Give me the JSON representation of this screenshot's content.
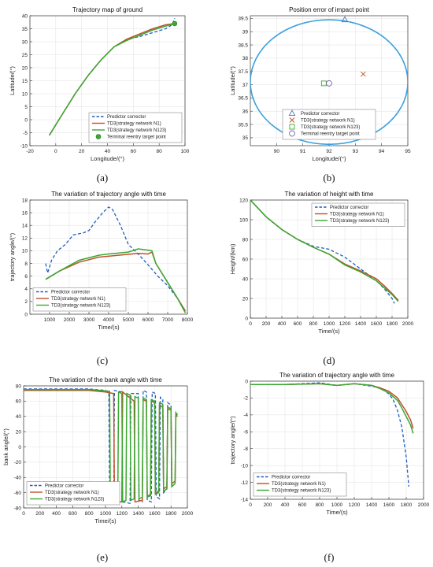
{
  "chart_data": [
    {
      "id": "a",
      "type": "line",
      "caption": "(a)",
      "title": "Trajectory map of ground",
      "xlabel": "Longitude/(°)",
      "ylabel": "Latitude/(°)",
      "xlim": [
        -20,
        100
      ],
      "ylim": [
        -10,
        40
      ],
      "xticks": [
        -20,
        0,
        20,
        40,
        60,
        80,
        100
      ],
      "yticks": [
        -10,
        -5,
        0,
        5,
        10,
        15,
        20,
        25,
        30,
        35,
        40
      ],
      "legend_position": "bottom-right",
      "legend": [
        "Predictor corrector",
        "TD3(strategy network N1)",
        "TD3(strategy network N123)",
        "Terminal reentry target point"
      ],
      "series": [
        {
          "name": "Predictor corrector",
          "style": "dashed",
          "color": "#1f5fbf",
          "x": [
            -5,
            5,
            15,
            25,
            35,
            45,
            55,
            65,
            75,
            85,
            90,
            92
          ],
          "y": [
            -6,
            2,
            10,
            17,
            23,
            28,
            31,
            32,
            33.5,
            35,
            36.5,
            39
          ]
        },
        {
          "name": "TD3(strategy network N1)",
          "style": "solid",
          "color": "#c0502a",
          "x": [
            -5,
            5,
            15,
            25,
            35,
            45,
            55,
            65,
            75,
            85,
            92
          ],
          "y": [
            -6,
            2,
            10,
            17,
            23,
            28,
            31,
            33,
            35,
            36.5,
            37
          ]
        },
        {
          "name": "TD3(strategy network N123)",
          "style": "solid",
          "color": "#3aa832",
          "x": [
            -5,
            5,
            15,
            25,
            35,
            45,
            55,
            65,
            75,
            85,
            92
          ],
          "y": [
            -6,
            2,
            10,
            17,
            23,
            28,
            30.5,
            32.5,
            34.5,
            36,
            37
          ]
        }
      ],
      "points": [
        {
          "name": "Terminal reentry target point",
          "x": 92,
          "y": 37,
          "color": "#3aa832",
          "marker": "filled-circle"
        }
      ]
    },
    {
      "id": "b",
      "type": "scatter",
      "caption": "(b)",
      "title": "Position error of impact point",
      "xlabel": "Longitude/(°)",
      "ylabel": "Latitude/(°)",
      "xlim": [
        89,
        95
      ],
      "ylim": [
        34.7,
        39.6
      ],
      "xticks": [
        90,
        91,
        92,
        93,
        94,
        95
      ],
      "yticks": [
        35,
        35.5,
        36,
        36.5,
        37,
        37.5,
        38,
        38.5,
        39,
        39.5
      ],
      "legend_position": "bottom",
      "legend": [
        "Predictor corrector",
        "TD3(strategy network N1)",
        "TD3(strategy network N123)",
        "Terminal reentry target point"
      ],
      "circle": {
        "cx": 92,
        "cy": 37.1,
        "rx": 3.0,
        "ry": 2.35,
        "color": "#3aa0e0"
      },
      "points": [
        {
          "name": "Predictor corrector",
          "x": 92.6,
          "y": 39.45,
          "marker": "triangle",
          "color": "#4a78c0"
        },
        {
          "name": "TD3(strategy network N1)",
          "x": 93.3,
          "y": 37.4,
          "marker": "x",
          "color": "#c0502a"
        },
        {
          "name": "TD3(strategy network N123)",
          "x": 91.8,
          "y": 37.05,
          "marker": "square",
          "color": "#3aa832"
        },
        {
          "name": "Terminal reentry target point",
          "x": 92,
          "y": 37.05,
          "marker": "circle",
          "color": "#7a6aa8"
        }
      ]
    },
    {
      "id": "c",
      "type": "line",
      "caption": "(c)",
      "title": "The variation of trajectory angle with time",
      "xlabel": "Time/(s)",
      "ylabel": "trajectory angle/(°)",
      "xlim": [
        0,
        8000
      ],
      "ylim": [
        0,
        18
      ],
      "xticks": [
        1000,
        2000,
        3000,
        4000,
        5000,
        6000,
        7000,
        8000
      ],
      "yticks": [
        0,
        2,
        4,
        6,
        8,
        10,
        12,
        14,
        16,
        18
      ],
      "legend_position": "bottom-left",
      "legend": [
        "Predictor corrector",
        "TD3(strategy network N1)",
        "TD3(strategy network N123)"
      ],
      "series": [
        {
          "name": "Predictor corrector",
          "style": "dashed",
          "color": "#1f5fbf",
          "x": [
            800,
            900,
            1100,
            1400,
            1800,
            2200,
            2700,
            3000,
            3300,
            3700,
            4000,
            4200,
            4600,
            5000,
            5500,
            6000,
            6500,
            7000,
            7500,
            7900
          ],
          "y": [
            8,
            6.5,
            8.5,
            10,
            11,
            12.5,
            12.8,
            13.2,
            14.5,
            16,
            16.9,
            16.5,
            14,
            11,
            9.5,
            7.8,
            6,
            4.5,
            2.5,
            0.5
          ]
        },
        {
          "name": "TD3(strategy network N1)",
          "style": "solid",
          "color": "#c0502a",
          "x": [
            800,
            1500,
            2500,
            3500,
            4500,
            5500,
            6000,
            6200,
            6400,
            7000,
            7500,
            7900
          ],
          "y": [
            5.5,
            6.8,
            8.2,
            9,
            9.3,
            9.6,
            9.5,
            9.8,
            8,
            5,
            2.5,
            0.5
          ]
        },
        {
          "name": "TD3(strategy network N123)",
          "style": "solid",
          "color": "#3aa832",
          "x": [
            800,
            1500,
            2500,
            3500,
            4000,
            5000,
            5500,
            6000,
            6200,
            6400,
            7000,
            7500,
            7900
          ],
          "y": [
            5.5,
            6.8,
            8.5,
            9.3,
            9.5,
            9.8,
            10.3,
            10.1,
            10,
            8,
            5,
            2.5,
            0.2
          ]
        }
      ]
    },
    {
      "id": "d",
      "type": "line",
      "caption": "(d)",
      "title": "The variation of height with time",
      "xlabel": "Time/(s)",
      "ylabel": "Height/(km)",
      "xlim": [
        0,
        2000
      ],
      "ylim": [
        0,
        120
      ],
      "xticks": [
        0,
        200,
        400,
        600,
        800,
        1000,
        1200,
        1400,
        1600,
        1800,
        2000
      ],
      "yticks": [
        0,
        20,
        40,
        60,
        80,
        100,
        120
      ],
      "legend_position": "top-right",
      "legend": [
        "Predictor corrector",
        "TD3(strategy network N1)",
        "TD3(strategy network N123)"
      ],
      "series": [
        {
          "name": "Predictor corrector",
          "style": "dashed",
          "color": "#1f5fbf",
          "x": [
            0,
            200,
            400,
            600,
            800,
            1000,
            1200,
            1400,
            1600,
            1700,
            1800,
            1830
          ],
          "y": [
            120,
            103,
            90,
            80,
            73,
            70,
            62,
            50,
            38,
            30,
            20,
            15
          ]
        },
        {
          "name": "TD3(strategy network N1)",
          "style": "solid",
          "color": "#c0502a",
          "x": [
            0,
            200,
            400,
            600,
            800,
            1000,
            1200,
            1400,
            1600,
            1700,
            1800,
            1880
          ],
          "y": [
            120,
            103,
            90,
            80,
            72,
            65,
            55,
            48,
            40,
            33,
            25,
            18
          ]
        },
        {
          "name": "TD3(strategy network N123)",
          "style": "solid",
          "color": "#3aa832",
          "x": [
            0,
            200,
            400,
            600,
            800,
            1000,
            1200,
            1400,
            1600,
            1700,
            1800,
            1880
          ],
          "y": [
            120,
            103,
            90,
            80,
            72,
            65,
            54,
            47,
            38,
            31,
            24,
            17
          ]
        }
      ]
    },
    {
      "id": "e",
      "type": "line",
      "caption": "(e)",
      "title": "The variation of the bank angle with time",
      "xlabel": "Time/(s)",
      "ylabel": "bank angle/(°)",
      "xlim": [
        0,
        2000
      ],
      "ylim": [
        -80,
        80
      ],
      "xticks": [
        0,
        200,
        400,
        600,
        800,
        1000,
        1200,
        1400,
        1600,
        1800,
        2000
      ],
      "yticks": [
        -80,
        -60,
        -40,
        -20,
        0,
        20,
        40,
        60,
        80
      ],
      "legend_position": "bottom-left",
      "legend": [
        "Predictor corrector",
        "TD3(strategy network N1)",
        "TD3(strategy network N123)"
      ],
      "series": [
        {
          "name": "Predictor corrector",
          "style": "dashed",
          "color": "#1f5fbf",
          "x": [
            0,
            800,
            1000,
            1040,
            1050,
            1100,
            1110,
            1200,
            1210,
            1300,
            1310,
            1400,
            1410,
            1450,
            1460,
            1500,
            1510,
            1560,
            1570,
            1610,
            1620,
            1660,
            1670,
            1700,
            1710,
            1750,
            1760,
            1800,
            1810,
            1830
          ],
          "y": [
            76,
            76,
            74,
            72,
            -72,
            -74,
            74,
            72,
            -72,
            -74,
            70,
            70,
            -70,
            -72,
            74,
            72,
            -70,
            -72,
            72,
            70,
            -65,
            -68,
            65,
            62,
            -60,
            -55,
            58,
            55,
            -50,
            -48
          ]
        },
        {
          "name": "TD3(strategy network N1)",
          "style": "solid",
          "color": "#c0502a",
          "x": [
            0,
            800,
            1000,
            1100,
            1110,
            1200,
            1210,
            1350,
            1360,
            1450,
            1460,
            1500,
            1510,
            1550,
            1560,
            1600,
            1610,
            1650,
            1660,
            1700,
            1710,
            1750,
            1760,
            1800,
            1810,
            1850,
            1860,
            1880
          ],
          "y": [
            74,
            74,
            72,
            70,
            -72,
            -72,
            72,
            60,
            -72,
            -70,
            62,
            60,
            -65,
            -62,
            60,
            58,
            -60,
            -58,
            55,
            52,
            -55,
            -52,
            50,
            48,
            -48,
            -45,
            42,
            40
          ]
        },
        {
          "name": "TD3(strategy network N123)",
          "style": "solid",
          "color": "#3aa832",
          "x": [
            0,
            800,
            1050,
            1060,
            1150,
            1160,
            1200,
            1210,
            1250,
            1260,
            1300,
            1310,
            1350,
            1360,
            1400,
            1410,
            1450,
            1460,
            1500,
            1510,
            1550,
            1560,
            1600,
            1610,
            1650,
            1660,
            1700,
            1710,
            1750,
            1760,
            1800,
            1810,
            1850,
            1860,
            1880
          ],
          "y": [
            75,
            75,
            73,
            -72,
            -72,
            72,
            70,
            -72,
            -70,
            70,
            68,
            -70,
            -68,
            66,
            64,
            -68,
            -66,
            64,
            62,
            -66,
            -64,
            62,
            60,
            -62,
            -60,
            58,
            56,
            -58,
            -55,
            52,
            50,
            -52,
            -48,
            45,
            42
          ]
        }
      ]
    },
    {
      "id": "f",
      "type": "line",
      "caption": "(f)",
      "title": "The variation of trajectory angle with time",
      "xlabel": "Time/(s)",
      "ylabel": "trajectory angle/(°)",
      "xlim": [
        0,
        2000
      ],
      "ylim": [
        -14,
        0
      ],
      "xticks": [
        0,
        200,
        400,
        600,
        800,
        1000,
        1200,
        1400,
        1600,
        1800,
        2000
      ],
      "yticks": [
        -14,
        -12,
        -10,
        -8,
        -6,
        -4,
        -2,
        0
      ],
      "legend_position": "bottom-left",
      "legend": [
        "Predictor corrector",
        "TD3(strategy network N1)",
        "TD3(strategy network N123)"
      ],
      "series": [
        {
          "name": "Predictor corrector",
          "style": "dashed",
          "color": "#1f5fbf",
          "x": [
            0,
            400,
            800,
            1000,
            1200,
            1400,
            1500,
            1600,
            1650,
            1700,
            1750,
            1800,
            1830
          ],
          "y": [
            -0.4,
            -0.4,
            -0.2,
            -0.5,
            -0.3,
            -0.6,
            -0.8,
            -1.5,
            -2.2,
            -3.5,
            -5.5,
            -9,
            -12.5
          ]
        },
        {
          "name": "TD3(strategy network N1)",
          "style": "solid",
          "color": "#c0502a",
          "x": [
            0,
            400,
            800,
            1000,
            1200,
            1400,
            1500,
            1600,
            1700,
            1750,
            1800,
            1850,
            1880
          ],
          "y": [
            -0.4,
            -0.4,
            -0.3,
            -0.5,
            -0.3,
            -0.5,
            -0.8,
            -1.2,
            -2,
            -2.8,
            -3.6,
            -4.6,
            -5.6
          ]
        },
        {
          "name": "TD3(strategy network N123)",
          "style": "solid",
          "color": "#3aa832",
          "x": [
            0,
            400,
            800,
            1000,
            1200,
            1400,
            1500,
            1600,
            1700,
            1750,
            1800,
            1850,
            1880
          ],
          "y": [
            -0.4,
            -0.4,
            -0.3,
            -0.5,
            -0.3,
            -0.5,
            -0.9,
            -1.4,
            -2.3,
            -3.2,
            -4.2,
            -5.2,
            -6.2
          ]
        }
      ]
    }
  ]
}
